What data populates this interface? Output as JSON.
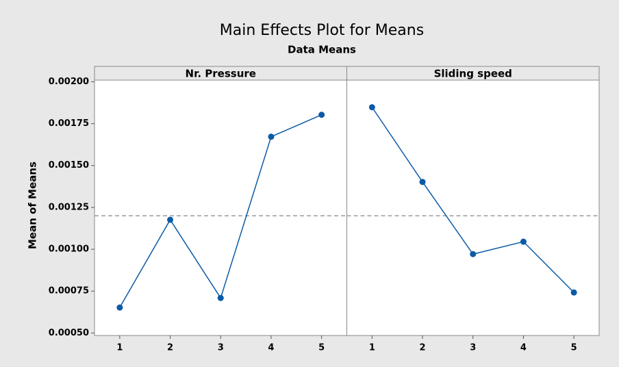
{
  "chart_data": {
    "type": "line",
    "title": "Main Effects Plot for Means",
    "subtitle": "Data Means",
    "ylabel": "Mean of Means",
    "color": "#0b5aa6",
    "panels": [
      {
        "name": "Nr. Pressure",
        "categories": [
          "1",
          "2",
          "3",
          "4",
          "5"
        ],
        "values": [
          0.000652,
          0.001176,
          0.000709,
          0.001672,
          0.001803
        ]
      },
      {
        "name": "Sliding speed",
        "categories": [
          "1",
          "2",
          "3",
          "4",
          "5"
        ],
        "values": [
          0.001848,
          0.001402,
          0.000971,
          0.001045,
          0.000742
        ]
      }
    ],
    "reference_line": 0.0012,
    "ylim": [
      0.000485,
      0.00201
    ],
    "yticks": [
      {
        "value": 0.0005,
        "label": "0.00050"
      },
      {
        "value": 0.00075,
        "label": "0.00075"
      },
      {
        "value": 0.001,
        "label": "0.00100"
      },
      {
        "value": 0.00125,
        "label": "0.00125"
      },
      {
        "value": 0.0015,
        "label": "0.00150"
      },
      {
        "value": 0.00175,
        "label": "0.00175"
      },
      {
        "value": 0.002,
        "label": "0.00200"
      }
    ]
  }
}
